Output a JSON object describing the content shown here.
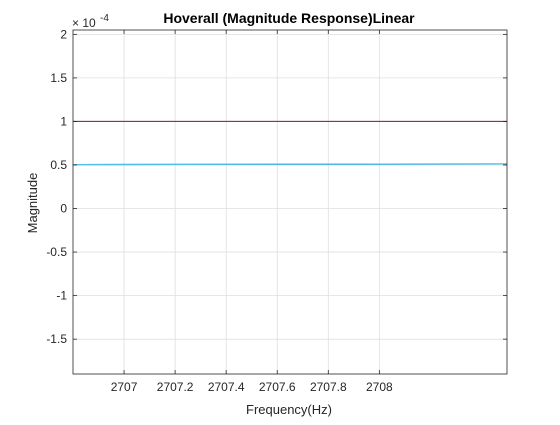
{
  "chart_data": {
    "type": "line",
    "title": "Hoverall (Magnitude Response)Linear",
    "xlabel": "Frequency(Hz)",
    "ylabel": "Magnitude",
    "y_exponent_label": "× 10",
    "y_exponent_power": "-4",
    "y_exponent": -4,
    "xlim": [
      2706.8,
      2708.5
    ],
    "ylim": [
      -1.9,
      2.05
    ],
    "x_ticks": [
      2707,
      2707.2,
      2707.4,
      2707.6,
      2707.8,
      2708
    ],
    "x_tick_labels": [
      "2707",
      "2707.2",
      "2707.4",
      "2707.6",
      "2707.8",
      "2708"
    ],
    "y_ticks": [
      -1.5,
      -1,
      -0.5,
      0,
      0.5,
      1,
      1.5,
      2
    ],
    "y_tick_labels": [
      "-1.5",
      "-1",
      "-0.5",
      "0",
      "0.5",
      "1",
      "1.5",
      "2"
    ],
    "grid": true,
    "series": [
      {
        "color": "#EDB120",
        "x": [
          2706.8,
          2708.5
        ],
        "y": [
          1.0,
          1.0
        ]
      },
      {
        "color": "#7E2F8E",
        "x": [
          2706.8,
          2708.5
        ],
        "y": [
          1.0,
          1.0
        ]
      },
      {
        "color": "#0072BD",
        "x": [
          2706.8,
          2708.5
        ],
        "y": [
          0.505,
          0.512
        ]
      },
      {
        "color": "#4DBEEE",
        "x": [
          2706.8,
          2708.5
        ],
        "y": [
          0.505,
          0.512
        ]
      }
    ]
  }
}
